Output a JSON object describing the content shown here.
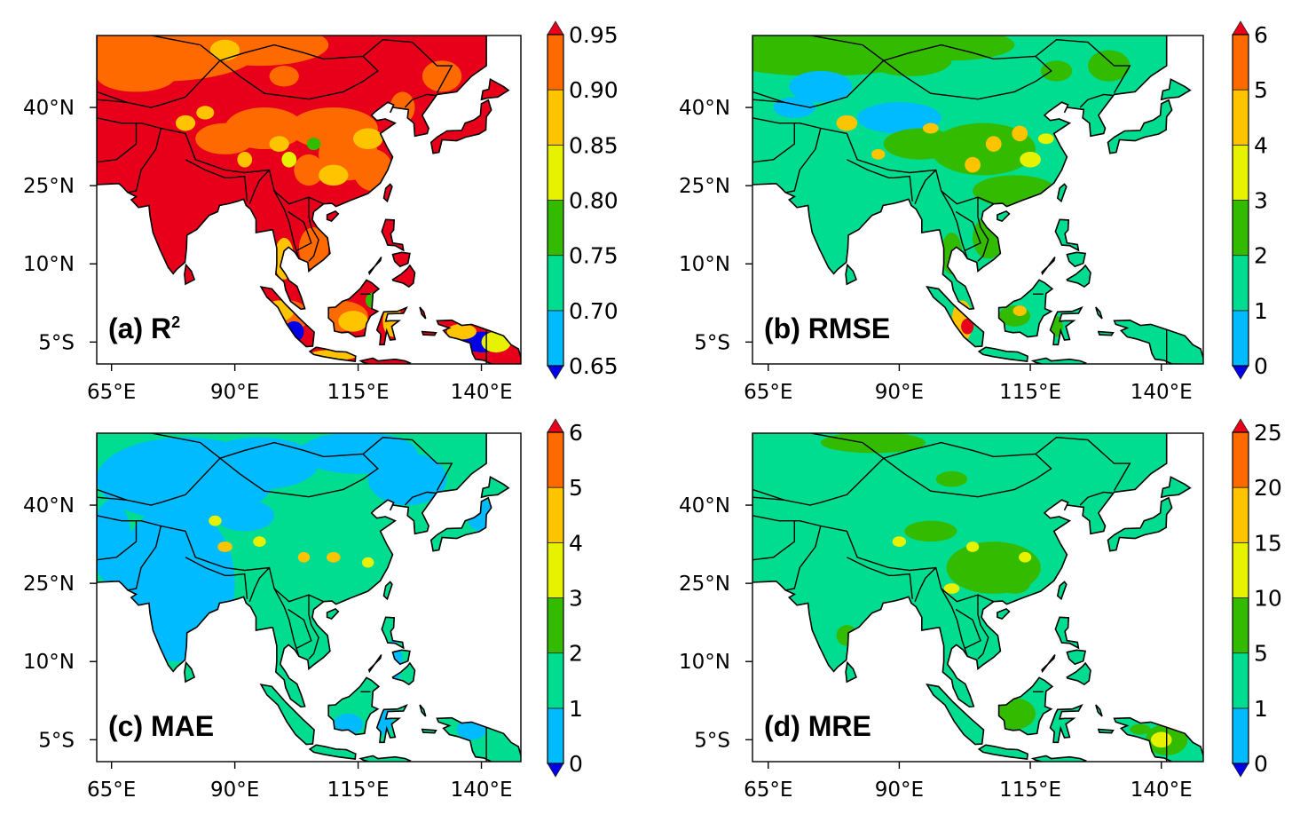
{
  "figure": {
    "x_tick_labels": [
      "65°E",
      "90°E",
      "115°E",
      "140°E"
    ],
    "x_tick_values": [
      65,
      90,
      115,
      140
    ],
    "y_tick_labels": [
      "40°N",
      "25°N",
      "10°N",
      "5°S"
    ],
    "y_tick_values": [
      40,
      25,
      10,
      -5
    ],
    "lon_range": [
      62,
      148
    ],
    "lat_range": [
      -9.2,
      53.8
    ]
  },
  "colors": {
    "under": "#0000e6",
    "levels": [
      "#00bbff",
      "#00dd90",
      "#33bb00",
      "#e6f200",
      "#ffc400",
      "#ff6a00"
    ],
    "over": "#e8001a",
    "border": "#000000"
  },
  "panels": [
    {
      "id": "a",
      "title": "(a) R",
      "title_sup": "2",
      "colorbar_ticks": [
        "0.65",
        "0.70",
        "0.75",
        "0.80",
        "0.85",
        "0.90",
        "0.95"
      ]
    },
    {
      "id": "b",
      "title": "(b) RMSE",
      "title_sup": "",
      "colorbar_ticks": [
        "0",
        "1",
        "2",
        "3",
        "4",
        "5",
        "6"
      ]
    },
    {
      "id": "c",
      "title": "(c) MAE",
      "title_sup": "",
      "colorbar_ticks": [
        "0",
        "1",
        "2",
        "3",
        "4",
        "5",
        "6"
      ]
    },
    {
      "id": "d",
      "title": "(d) MRE",
      "title_sup": "",
      "colorbar_ticks": [
        "0",
        "1",
        "5",
        "10",
        "15",
        "20",
        "25"
      ]
    }
  ]
}
